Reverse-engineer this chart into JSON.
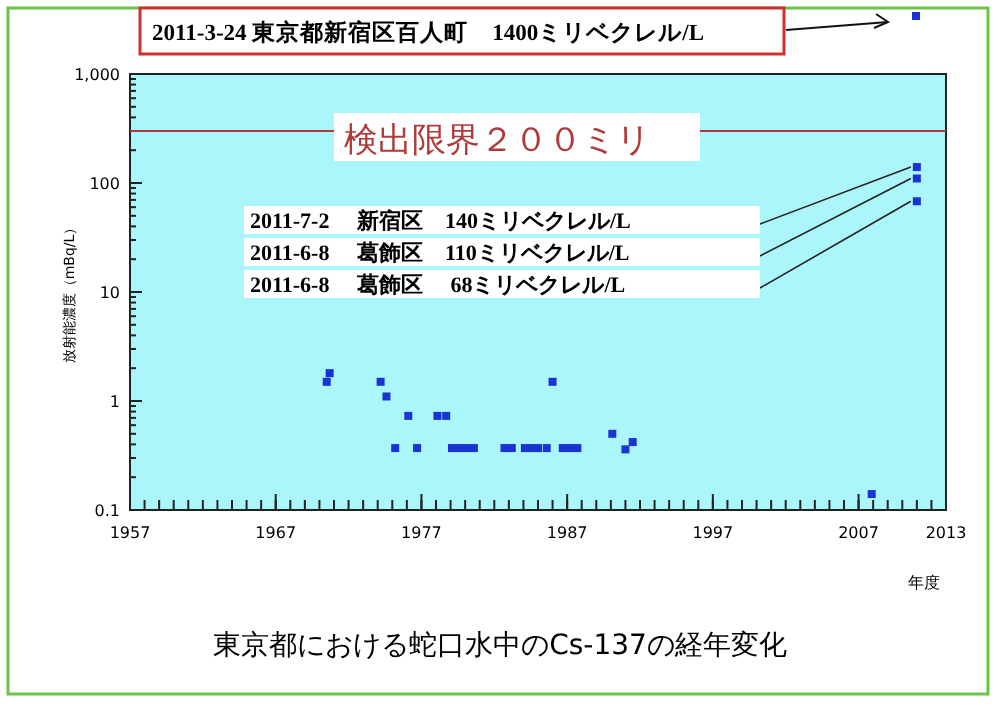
{
  "chart_data": {
    "type": "scatter",
    "title": "東京都における蛇口水中のCs-137の経年変化",
    "xlabel": "年度",
    "ylabel": "放射能濃度（mBq/L）",
    "log": "y",
    "grid": false,
    "marker": "square",
    "xlim": [
      1957,
      2013
    ],
    "xticks": [
      1957,
      1967,
      1977,
      1987,
      1997,
      2007,
      2013
    ],
    "ylim": [
      0.1,
      1000
    ],
    "yticks": [
      0.1,
      1,
      10,
      100,
      {
        "value": 1000,
        "label": "1,000"
      }
    ],
    "series": [
      {
        "color": "#1c33d4",
        "x": [
          1970.5,
          1970.7,
          1974.2,
          1974.6,
          1975.2,
          1976.1,
          1976.7,
          1978.1,
          1978.7,
          1979.1,
          1979.6,
          1980.1,
          1980.6,
          1982.7,
          1983.2,
          1984.1,
          1984.6,
          1985.0,
          1985.6,
          1986.0,
          1986.7,
          1987.2,
          1987.7,
          1990.1,
          1991.0,
          1991.5,
          2007.9,
          2011,
          2011,
          2011
        ],
        "values": [
          1.5,
          1.8,
          1.5,
          1.1,
          0.37,
          0.73,
          0.37,
          0.73,
          0.73,
          0.37,
          0.37,
          0.37,
          0.37,
          0.37,
          0.37,
          0.37,
          0.37,
          0.37,
          0.37,
          1.5,
          0.37,
          0.37,
          0.37,
          0.5,
          0.36,
          0.42,
          0.14,
          140,
          110,
          68
        ]
      }
    ],
    "ref_lines": [
      {
        "axis": "y",
        "value": 300,
        "label": "検出限界２００ミリ",
        "color": "#b03a3a"
      }
    ],
    "annotations": [
      "2011-3-24 東京都新宿区百人町　1400ミリベクレル/L",
      "2011-7-2　 新宿区　140ミリベクレル/L",
      "2011-6-8　 葛飾区　110ミリベクレル/L",
      "2011-6-8　 葛飾区　 68ミリベクレル/L"
    ]
  }
}
